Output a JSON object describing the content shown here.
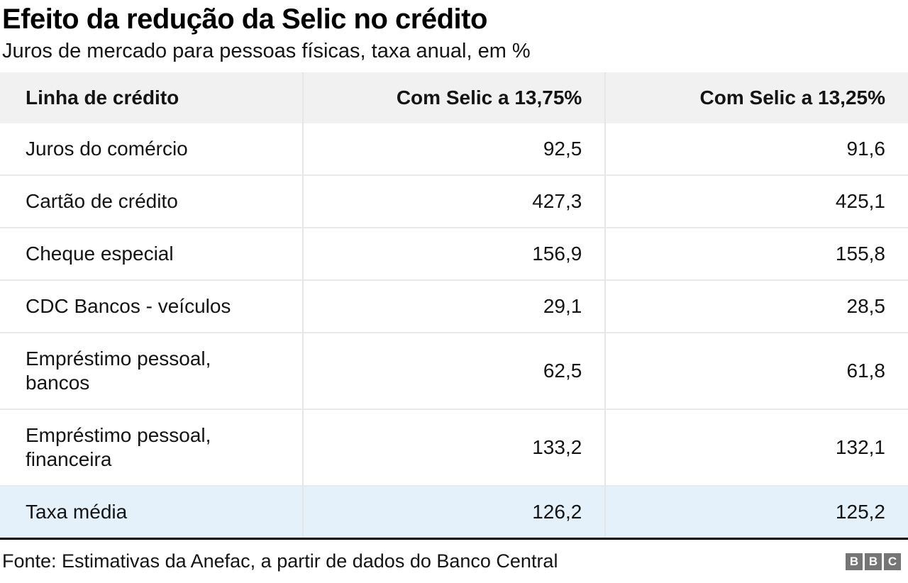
{
  "header": {
    "title": "Efeito da redução da Selic no crédito",
    "subtitle": "Juros de mercado para pessoas físicas, taxa anual, em %"
  },
  "table": {
    "columns": [
      "Linha de crédito",
      "Com Selic a 13,75%",
      "Com Selic a 13,25%"
    ],
    "rows": [
      {
        "label": "Juros do comércio",
        "selic_1375": "92,5",
        "selic_1325": "91,6",
        "highlight": false
      },
      {
        "label": "Cartão de crédito",
        "selic_1375": "427,3",
        "selic_1325": "425,1",
        "highlight": false
      },
      {
        "label": "Cheque especial",
        "selic_1375": "156,9",
        "selic_1325": "155,8",
        "highlight": false
      },
      {
        "label": "CDC Bancos - veículos",
        "selic_1375": "29,1",
        "selic_1325": "28,5",
        "highlight": false
      },
      {
        "label": "Empréstimo pessoal,\nbancos",
        "selic_1375": "62,5",
        "selic_1325": "61,8",
        "highlight": false
      },
      {
        "label": "Empréstimo pessoal,\nfinanceira",
        "selic_1375": "133,2",
        "selic_1325": "132,1",
        "highlight": false
      },
      {
        "label": "Taxa média",
        "selic_1375": "126,2",
        "selic_1325": "125,2",
        "highlight": true
      }
    ]
  },
  "footer": {
    "source": "Fonte: Estimativas da Anefac, a partir de dados do Banco Central",
    "logo_letters": [
      "B",
      "B",
      "C"
    ]
  },
  "colors": {
    "header_row_bg": "#f1f1f1",
    "highlight_row_bg": "#e4f1fb",
    "row_border": "#e9e9e9",
    "column_border": "#e6e6e6",
    "divider": "#000000",
    "text": "#141414",
    "logo_block_bg": "#757575",
    "logo_letter": "#ffffff"
  },
  "chart_data": {
    "type": "table",
    "title": "Efeito da redução da Selic no crédito",
    "subtitle": "Juros de mercado para pessoas físicas, taxa anual, em %",
    "columns": [
      "Linha de crédito",
      "Com Selic a 13,75%",
      "Com Selic a 13,25%"
    ],
    "rows": [
      [
        "Juros do comércio",
        92.5,
        91.6
      ],
      [
        "Cartão de crédito",
        427.3,
        425.1
      ],
      [
        "Cheque especial",
        156.9,
        155.8
      ],
      [
        "CDC Bancos - veículos",
        29.1,
        28.5
      ],
      [
        "Empréstimo pessoal, bancos",
        62.5,
        61.8
      ],
      [
        "Empréstimo pessoal, financeira",
        133.2,
        132.1
      ],
      [
        "Taxa média",
        126.2,
        125.2
      ]
    ],
    "highlighted_row": "Taxa média",
    "decimal_separator": ",",
    "unit": "% annual rate",
    "source": "Fonte: Estimativas da Anefac, a partir de dados do Banco Central"
  }
}
